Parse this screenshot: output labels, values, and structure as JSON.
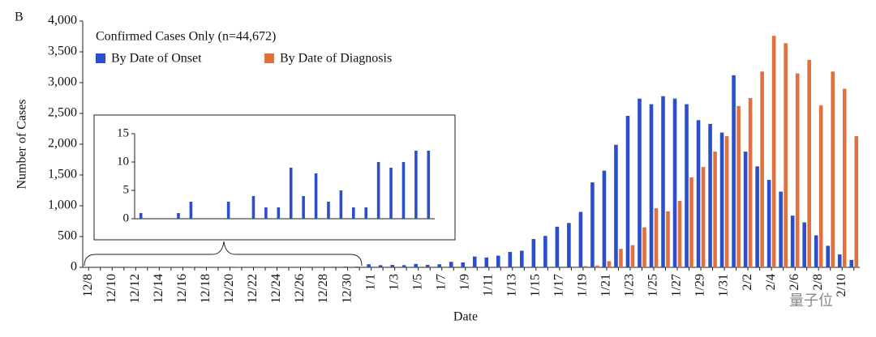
{
  "panel_label": "B",
  "watermark": "量子位",
  "chart_data": [
    {
      "type": "bar",
      "legend_title": "Confirmed Cases Only (n=44,672)",
      "xlabel": "Date",
      "ylabel": "Number of Cases",
      "categories": [
        "12/8",
        null,
        "12/10",
        null,
        "12/12",
        null,
        "12/14",
        null,
        "12/16",
        null,
        "12/18",
        null,
        "12/20",
        null,
        "12/22",
        null,
        "12/24",
        null,
        "12/26",
        null,
        "12/28",
        null,
        "12/30",
        null,
        "1/1",
        null,
        "1/3",
        null,
        "1/5",
        null,
        "1/7",
        null,
        "1/9",
        null,
        "1/11",
        null,
        "1/13",
        null,
        "1/15",
        null,
        "1/17",
        null,
        "1/19",
        null,
        "1/21",
        null,
        "1/23",
        null,
        "1/25",
        null,
        "1/27",
        null,
        "1/29",
        null,
        "1/31",
        null,
        "2/2",
        null,
        "2/4",
        null,
        "2/6",
        null,
        "2/8",
        null,
        "2/10",
        null
      ],
      "series": [
        {
          "name": "By Date of Onset",
          "color": "#2b4fcc",
          "values": [
            1,
            0,
            0,
            1,
            3,
            0,
            0,
            3,
            0,
            4,
            2,
            2,
            9,
            4,
            8,
            3,
            5,
            2,
            2,
            10,
            9,
            10,
            12,
            12,
            50,
            35,
            40,
            35,
            55,
            40,
            50,
            90,
            80,
            175,
            160,
            190,
            250,
            270,
            460,
            510,
            660,
            720,
            900,
            1380,
            1570,
            1990,
            2460,
            2740,
            2650,
            2780,
            2740,
            2650,
            2390,
            2330,
            2190,
            3120,
            1880,
            1640,
            1420,
            1230,
            840,
            730,
            520,
            350,
            210,
            120
          ]
        },
        {
          "name": "By Date of Diagnosis",
          "color": "#e2703f",
          "values": [
            0,
            0,
            0,
            0,
            0,
            0,
            0,
            0,
            0,
            0,
            0,
            0,
            0,
            0,
            0,
            0,
            0,
            0,
            0,
            0,
            0,
            0,
            0,
            0,
            0,
            0,
            0,
            0,
            0,
            0,
            0,
            0,
            0,
            0,
            0,
            0,
            0,
            0,
            0,
            0,
            0,
            0,
            20,
            30,
            100,
            300,
            360,
            650,
            960,
            910,
            1080,
            1460,
            1630,
            1880,
            2130,
            2620,
            2750,
            3180,
            3760,
            3640,
            3150,
            3370,
            2630,
            3180,
            2900,
            2130
          ]
        }
      ],
      "ylim": [
        0,
        4000
      ],
      "yticks": [
        0,
        {
          "value": 500,
          "label": "500"
        },
        {
          "value": 1000,
          "label": "1,000"
        },
        {
          "value": 1500,
          "label": "1,500"
        },
        {
          "value": 2000,
          "label": "2,000"
        },
        {
          "value": 2500,
          "label": "2,500"
        },
        {
          "value": 3000,
          "label": "3,000"
        },
        {
          "value": 3500,
          "label": "3,500"
        },
        {
          "value": 4000,
          "label": "4,000"
        }
      ],
      "grid": false
    },
    {
      "type": "bar",
      "categories": [
        null,
        null,
        null,
        null,
        null,
        null,
        null,
        null,
        null,
        null,
        null,
        null,
        null,
        null,
        null,
        null,
        null,
        null,
        null,
        null,
        null,
        null,
        null,
        null
      ],
      "series": [
        {
          "name": "By Date of Onset",
          "color": "#2b4fcc",
          "values": [
            1,
            0,
            0,
            1,
            3,
            0,
            0,
            3,
            0,
            4,
            2,
            2,
            9,
            4,
            8,
            3,
            5,
            2,
            2,
            10,
            9,
            10,
            12,
            12
          ]
        }
      ],
      "ylim": [
        0,
        15
      ],
      "yticks": [
        0,
        5,
        10,
        15
      ],
      "grid": false
    }
  ]
}
